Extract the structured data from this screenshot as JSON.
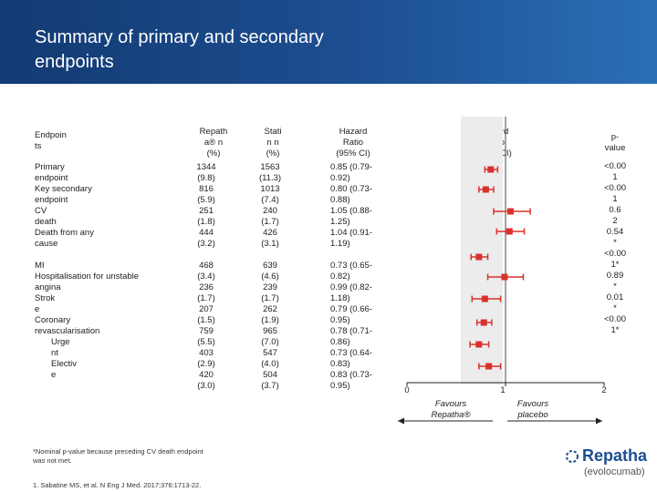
{
  "slide": {
    "title_line1": "Summary of primary and secondary",
    "title_line2": "endpoints"
  },
  "table": {
    "headers": {
      "endpoints": [
        "Endpoin",
        "ts"
      ],
      "repatha": [
        "Repath",
        "a® n",
        "(%)"
      ],
      "statin": [
        "Stati",
        "n n",
        "(%)"
      ],
      "hr_text": [
        "Hazard",
        "Ratio",
        "(95% CI)"
      ],
      "hr_plot": [
        "Hazard",
        "Ratio",
        "(95% CI)"
      ],
      "pvalue": [
        "p-",
        "value"
      ]
    },
    "group1": {
      "endpoint_lines": [
        "Primary",
        "endpoint",
        "Key secondary",
        "endpoint",
        "CV",
        "death",
        "Death from any",
        "cause"
      ],
      "repatha_lines": [
        "1344",
        "(9.8)",
        "816",
        "(5.9)",
        "251",
        "(1.8)",
        "444",
        "(3.2)"
      ],
      "statin_lines": [
        "1563",
        "(11.3)",
        "1013",
        "(7.4)",
        "240",
        "(1.7)",
        "426",
        "(3.1)"
      ],
      "hr_lines": [
        "0.85 (0.79-",
        "0.92)",
        "0.80 (0.73-",
        "0.88)",
        "1.05 (0.88-",
        "1.25)",
        "1.04 (0.91-",
        "1.19)"
      ]
    },
    "group2": {
      "endpoint_lines": [
        "MI",
        "Hospitalisation for unstable",
        "angina",
        "Strok",
        "e",
        "Coronary",
        "revascularisation",
        "Urge",
        "nt",
        "Electiv",
        "e"
      ],
      "repatha_lines": [
        "468",
        "(3.4)",
        "236",
        "(1.7)",
        "207",
        "(1.5)",
        "759",
        "(5.5)",
        "403",
        "(2.9)",
        "420",
        "(3.0)"
      ],
      "statin_lines": [
        "639",
        "(4.6)",
        "239",
        "(1.7)",
        "262",
        "(1.9)",
        "965",
        "(7.0)",
        "547",
        "(4.0)",
        "504",
        "(3.7)"
      ],
      "hr_lines": [
        "0.73 (0.65-",
        "0.82)",
        "0.99 (0.82-",
        "1.18)",
        "0.79 (0.66-",
        "0.95)",
        "0.78 (0.71-",
        "0.86)",
        "0.73 (0.64-",
        "0.83)",
        "0.83 (0.73-",
        "0.95)"
      ]
    },
    "pvalue_lines": [
      "<0.00",
      "1",
      "<0.00",
      "1",
      "0.6",
      "2",
      "0.54",
      "*",
      "<0.00",
      "1*",
      "0.89",
      "*",
      "0.01",
      "*",
      "<0.00",
      "1*"
    ]
  },
  "chart_data": {
    "type": "forest",
    "x_axis": {
      "ticks": [
        0,
        1,
        2
      ],
      "range": [
        0,
        2
      ]
    },
    "reference_line": 1,
    "points": [
      {
        "hr": 0.85,
        "lo": 0.79,
        "hi": 0.92
      },
      {
        "hr": 0.8,
        "lo": 0.73,
        "hi": 0.88
      },
      {
        "hr": 1.05,
        "lo": 0.88,
        "hi": 1.25
      },
      {
        "hr": 1.04,
        "lo": 0.91,
        "hi": 1.19
      },
      {
        "hr": 0.73,
        "lo": 0.65,
        "hi": 0.82
      },
      {
        "hr": 0.99,
        "lo": 0.82,
        "hi": 1.18
      },
      {
        "hr": 0.79,
        "lo": 0.66,
        "hi": 0.95
      },
      {
        "hr": 0.78,
        "lo": 0.71,
        "hi": 0.86
      },
      {
        "hr": 0.73,
        "lo": 0.64,
        "hi": 0.83
      },
      {
        "hr": 0.83,
        "lo": 0.73,
        "hi": 0.95
      }
    ],
    "favours_left": [
      "Favours",
      "Repatha®"
    ],
    "favours_right": [
      "Favours",
      "placebo"
    ],
    "marker_color": "#d9312b",
    "band_color": "#ececec"
  },
  "footnotes": {
    "nominal": [
      "*Nominal p-value because preceding CV death endpoint",
      "was not met."
    ],
    "reference": "1. Sabatine MS, et al. N Eng J Med. 2017;376:1713-22."
  },
  "logo": {
    "wordmark": "Repatha",
    "subtitle": "(evolocumab)",
    "brand_color": "#1b4f91"
  }
}
